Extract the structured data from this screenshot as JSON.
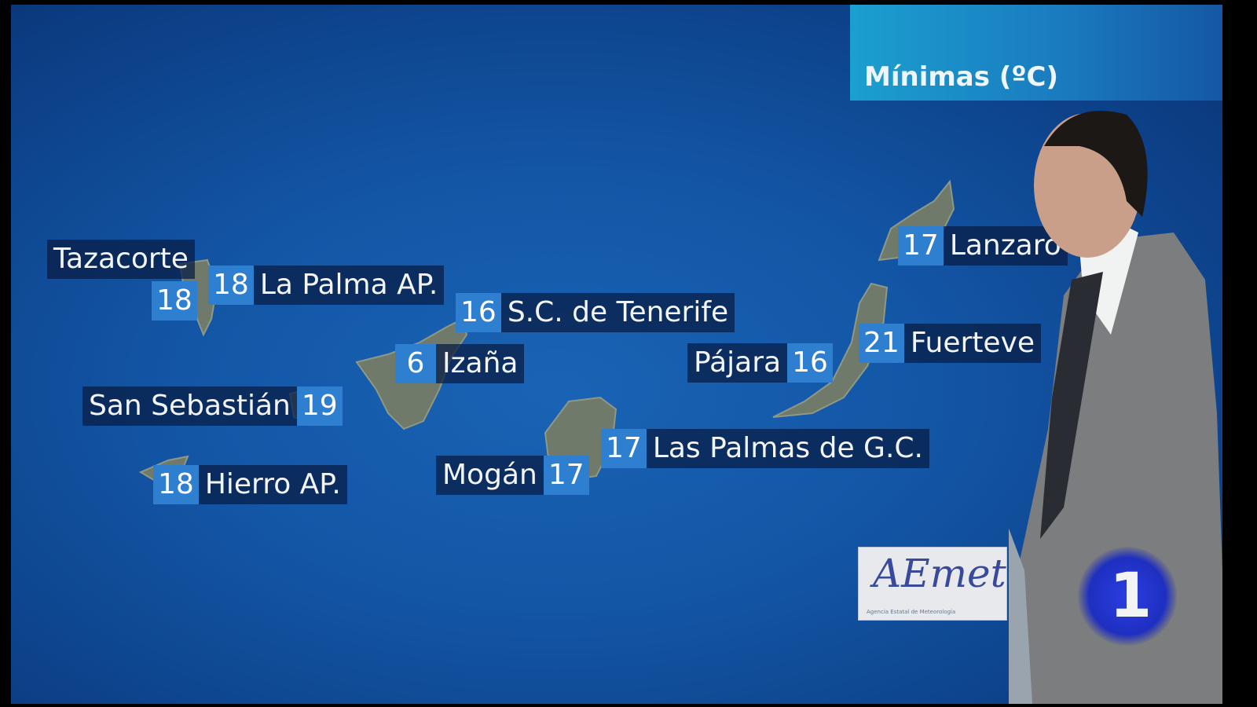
{
  "header": {
    "title": "Mínimas (ºC)"
  },
  "colors": {
    "sea": "#1356a6",
    "header": "#1b9fd0",
    "value_box": "#2f7fd0",
    "label_box": "#081e46"
  },
  "stations": [
    {
      "name": "Tazacorte",
      "value": "18"
    },
    {
      "name": "La Palma AP.",
      "value": "18"
    },
    {
      "name": "S.C. de Tenerife",
      "value": "16"
    },
    {
      "name": "Izaña",
      "value": "6"
    },
    {
      "name": "San Sebastián",
      "value": "19"
    },
    {
      "name": "Hierro AP.",
      "value": "18"
    },
    {
      "name": "Mogán",
      "value": "17"
    },
    {
      "name": "Las Palmas de G.C.",
      "value": "17"
    },
    {
      "name": "Pájara",
      "value": "16"
    },
    {
      "name": "Fuerteve",
      "value": "21"
    },
    {
      "name": "Lanzaro",
      "value": "17"
    }
  ],
  "logos": {
    "aemet": "AEmet",
    "aemet_sub": "Agencia Estatal de Meteorología",
    "channel": "1"
  }
}
